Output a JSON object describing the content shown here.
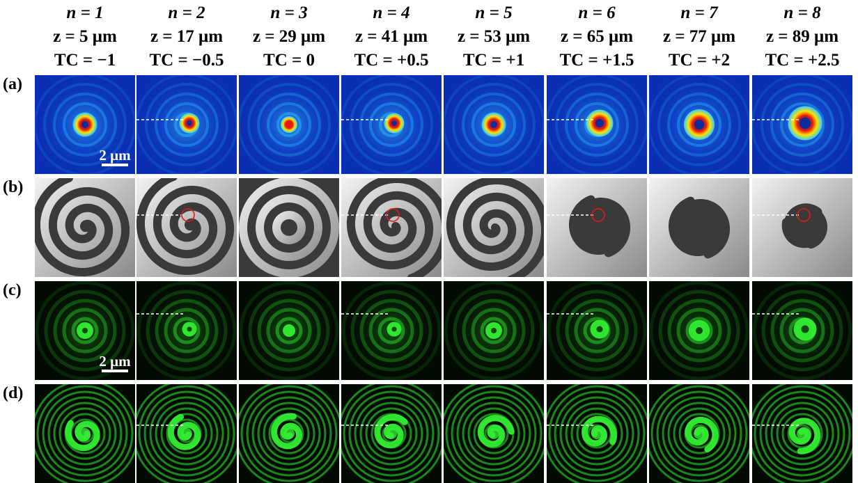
{
  "columns": [
    {
      "n_label": "n = 1",
      "z_label": "z = 5 μm",
      "tc_label": "TC = −1",
      "tc": -1.0
    },
    {
      "n_label": "n = 2",
      "z_label": "z = 17 μm",
      "tc_label": "TC = −0.5",
      "tc": -0.5
    },
    {
      "n_label": "n = 3",
      "z_label": "z = 29 μm",
      "tc_label": "TC = 0",
      "tc": 0.0
    },
    {
      "n_label": "n = 4",
      "z_label": "z = 41 μm",
      "tc_label": "TC = +0.5",
      "tc": 0.5
    },
    {
      "n_label": "n = 5",
      "z_label": "z = 53 μm",
      "tc_label": "TC = +1",
      "tc": 1.0
    },
    {
      "n_label": "n = 6",
      "z_label": "z = 65 μm",
      "tc_label": "TC = +1.5",
      "tc": 1.5
    },
    {
      "n_label": "n = 7",
      "z_label": "z = 77 μm",
      "tc_label": "TC = +2",
      "tc": 2.0
    },
    {
      "n_label": "n = 8",
      "z_label": "z = 89 μm",
      "tc_label": "TC = +2.5",
      "tc": 2.5
    }
  ],
  "rows": [
    {
      "label": "(a)",
      "kind": "simulated-intensity"
    },
    {
      "label": "(b)",
      "kind": "simulated-phase"
    },
    {
      "label": "(c)",
      "kind": "experimental-intensity"
    },
    {
      "label": "(d)",
      "kind": "experimental-interference"
    }
  ],
  "scale_bar_label": "2 μm",
  "colors": {
    "sim_background": "#0a2fb4",
    "sim_ring": "#27b8ff",
    "sim_core_hot": "#e61a0a",
    "sim_core_mid": "#ffe100",
    "phase_light": "#f2f2f2",
    "phase_dark": "#3a3a3a",
    "exp_green": "#33ee33",
    "exp_background": "#020a02",
    "marker_red": "#e11a1a",
    "dash_white": "#ffffff"
  }
}
